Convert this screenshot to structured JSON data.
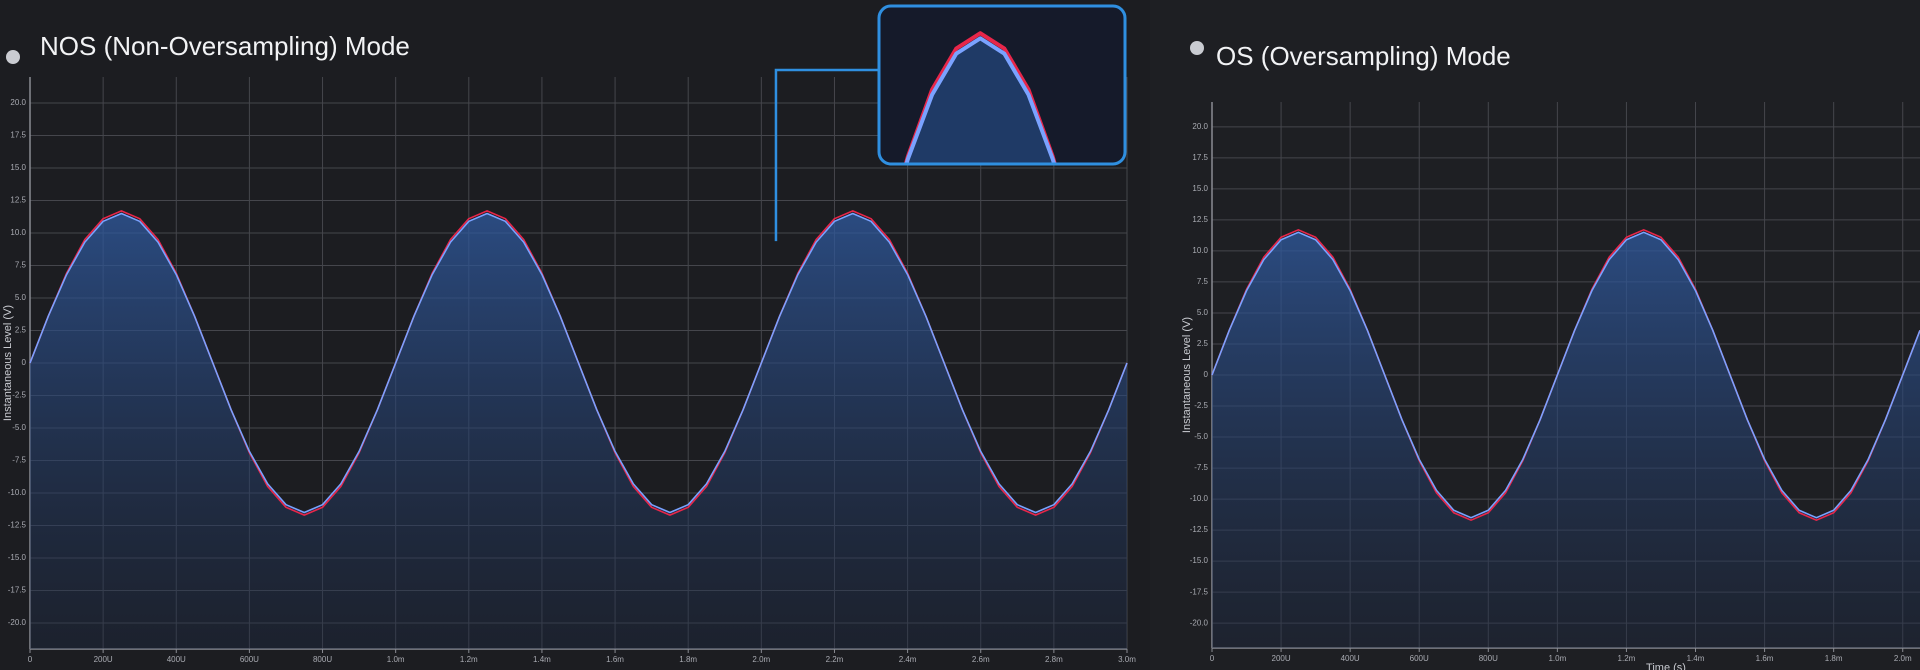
{
  "chart_data": [
    {
      "type": "line",
      "title": "NOS (Non-Oversampling) Mode",
      "ylabel": "Instantaneous Level (V)",
      "x": [
        0,
        0.05,
        0.1,
        0.15,
        0.2,
        0.25,
        0.3,
        0.35,
        0.4,
        0.45,
        0.5,
        0.55,
        0.6,
        0.65,
        0.7,
        0.75,
        0.8,
        0.85,
        0.9,
        0.95,
        1,
        1.05,
        1.1,
        1.15,
        1.2,
        1.25,
        1.3,
        1.35,
        1.4,
        1.45,
        1.5,
        1.55,
        1.6,
        1.65,
        1.7,
        1.75,
        1.8,
        1.85,
        1.9,
        1.95,
        2,
        2.05,
        2.1,
        2.15,
        2.2,
        2.25,
        2.3,
        2.35,
        2.4,
        2.45,
        2.5,
        2.55,
        2.6,
        2.65,
        2.7,
        2.75,
        2.8,
        2.85,
        2.9,
        2.95,
        3
      ],
      "series": [
        {
          "color": "#e8264a",
          "values": [
            0,
            3.6,
            6.9,
            9.5,
            11.1,
            11.7,
            11.1,
            9.5,
            6.9,
            3.6,
            0,
            -3.6,
            -6.9,
            -9.5,
            -11.1,
            -11.7,
            -11.1,
            -9.5,
            -6.9,
            -3.6,
            0,
            3.6,
            6.9,
            9.5,
            11.1,
            11.7,
            11.1,
            9.5,
            6.9,
            3.6,
            0,
            -3.6,
            -6.9,
            -9.5,
            -11.1,
            -11.7,
            -11.1,
            -9.5,
            -6.9,
            -3.6,
            0,
            3.6,
            6.9,
            9.5,
            11.1,
            11.7,
            11.1,
            9.5,
            6.9,
            3.6,
            0,
            -3.6,
            -6.9,
            -9.5,
            -11.1,
            -11.7,
            -11.1,
            -9.5,
            -6.9,
            -3.6,
            0
          ]
        },
        {
          "color": "#7aa2ff",
          "values": [
            0,
            3.6,
            6.8,
            9.3,
            10.9,
            11.5,
            10.9,
            9.3,
            6.8,
            3.6,
            0,
            -3.6,
            -6.8,
            -9.3,
            -10.9,
            -11.5,
            -10.9,
            -9.3,
            -6.8,
            -3.6,
            0,
            3.6,
            6.8,
            9.3,
            10.9,
            11.5,
            10.9,
            9.3,
            6.8,
            3.6,
            0,
            -3.6,
            -6.8,
            -9.3,
            -10.9,
            -11.5,
            -10.9,
            -9.3,
            -6.8,
            -3.6,
            0,
            3.6,
            6.8,
            9.3,
            10.9,
            11.5,
            10.9,
            9.3,
            6.8,
            3.6,
            0,
            -3.6,
            -6.8,
            -9.3,
            -10.9,
            -11.5,
            -10.9,
            -9.3,
            -6.8,
            -3.6,
            0
          ]
        }
      ],
      "xlim": [
        0,
        3
      ],
      "xticks": [
        0,
        {
          "value": 0.2,
          "label": "200U"
        },
        {
          "value": 0.4,
          "label": "400U"
        },
        {
          "value": 0.6,
          "label": "600U"
        },
        {
          "value": 0.8,
          "label": "800U"
        },
        {
          "value": 1,
          "label": "1.0m"
        },
        {
          "value": 1.2,
          "label": "1.2m"
        },
        {
          "value": 1.4,
          "label": "1.4m"
        },
        {
          "value": 1.6,
          "label": "1.6m"
        },
        {
          "value": 1.8,
          "label": "1.8m"
        },
        {
          "value": 2,
          "label": "2.0m"
        },
        {
          "value": 2.2,
          "label": "2.2m"
        },
        {
          "value": 2.4,
          "label": "2.4m"
        },
        {
          "value": 2.6,
          "label": "2.6m"
        },
        {
          "value": 2.8,
          "label": "2.8m"
        },
        {
          "value": 3,
          "label": "3.0m"
        }
      ],
      "ylim": [
        -22,
        22
      ],
      "yticks": [
        {
          "value": 20,
          "label": "20.0"
        },
        17.5,
        {
          "value": 15,
          "label": "15.0"
        },
        12.5,
        {
          "value": 10,
          "label": "10.0"
        },
        7.5,
        {
          "value": 5,
          "label": "5.0"
        },
        2.5,
        0,
        -2.5,
        {
          "value": -5,
          "label": "-5.0"
        },
        -7.5,
        {
          "value": -10,
          "label": "-10.0"
        },
        -12.5,
        {
          "value": -15,
          "label": "-15.0"
        },
        -17.5,
        {
          "value": -20,
          "label": "-20.0"
        }
      ],
      "grid": true,
      "zoom_inset": true
    },
    {
      "type": "line",
      "title": "OS (Oversampling) Mode",
      "ylabel": "Instantaneous Level (V)",
      "xlabel": "Time (s)",
      "x": [
        0,
        0.05,
        0.1,
        0.15,
        0.2,
        0.25,
        0.3,
        0.35,
        0.4,
        0.45,
        0.5,
        0.55,
        0.6,
        0.65,
        0.7,
        0.75,
        0.8,
        0.85,
        0.9,
        0.95,
        1,
        1.05,
        1.1,
        1.15,
        1.2,
        1.25,
        1.3,
        1.35,
        1.4,
        1.45,
        1.5,
        1.55,
        1.6,
        1.65,
        1.7,
        1.75,
        1.8,
        1.85,
        1.9,
        1.95,
        2,
        2.05
      ],
      "series": [
        {
          "color": "#e8264a",
          "values": [
            0,
            3.6,
            6.9,
            9.5,
            11.1,
            11.7,
            11.1,
            9.5,
            6.9,
            3.6,
            0,
            -3.6,
            -6.9,
            -9.5,
            -11.1,
            -11.7,
            -11.1,
            -9.5,
            -6.9,
            -3.6,
            0,
            3.6,
            6.9,
            9.5,
            11.1,
            11.7,
            11.1,
            9.5,
            6.9,
            3.6,
            0,
            -3.6,
            -6.9,
            -9.5,
            -11.1,
            -11.7,
            -11.1,
            -9.5,
            -6.9,
            -3.6,
            0,
            3.6
          ]
        },
        {
          "color": "#7aa2ff",
          "values": [
            0,
            3.6,
            6.8,
            9.3,
            10.9,
            11.5,
            10.9,
            9.3,
            6.8,
            3.6,
            0,
            -3.6,
            -6.8,
            -9.3,
            -10.9,
            -11.5,
            -10.9,
            -9.3,
            -6.8,
            -3.6,
            0,
            3.6,
            6.8,
            9.3,
            10.9,
            11.5,
            10.9,
            9.3,
            6.8,
            3.6,
            0,
            -3.6,
            -6.8,
            -9.3,
            -10.9,
            -11.5,
            -10.9,
            -9.3,
            -6.8,
            -3.6,
            0,
            3.6
          ]
        }
      ],
      "xlim": [
        0,
        2.05
      ],
      "xticks": [
        0,
        {
          "value": 0.2,
          "label": "200U"
        },
        {
          "value": 0.4,
          "label": "400U"
        },
        {
          "value": 0.6,
          "label": "600U"
        },
        {
          "value": 0.8,
          "label": "800U"
        },
        {
          "value": 1,
          "label": "1.0m"
        },
        {
          "value": 1.2,
          "label": "1.2m"
        },
        {
          "value": 1.4,
          "label": "1.4m"
        },
        {
          "value": 1.6,
          "label": "1.6m"
        },
        {
          "value": 1.8,
          "label": "1.8m"
        },
        {
          "value": 2,
          "label": "2.0m"
        }
      ],
      "ylim": [
        -22,
        22
      ],
      "yticks": [
        {
          "value": 20,
          "label": "20.0"
        },
        17.5,
        {
          "value": 15,
          "label": "15.0"
        },
        12.5,
        {
          "value": 10,
          "label": "10.0"
        },
        7.5,
        {
          "value": 5,
          "label": "5.0"
        },
        2.5,
        0,
        -2.5,
        {
          "value": -5,
          "label": "-5.0"
        },
        -7.5,
        {
          "value": -10,
          "label": "-10.0"
        },
        -12.5,
        {
          "value": -15,
          "label": "-15.0"
        },
        -17.5,
        {
          "value": -20,
          "label": "-20.0"
        }
      ],
      "grid": true
    }
  ]
}
